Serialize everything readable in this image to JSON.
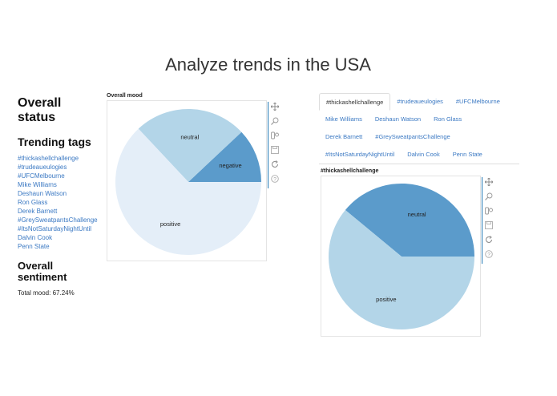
{
  "page": {
    "title": "Analyze trends in the USA"
  },
  "left": {
    "status_heading_1": "Overall",
    "status_heading_2": "status",
    "trending_heading": "Trending tags",
    "tags": [
      "#thickashellchallenge",
      "#trudeaueulogies",
      "#UFCMelbourne",
      "Mike Williams",
      "Deshaun Watson",
      "Ron Glass",
      "Derek Barnett",
      "#GreySweatpantsChallenge",
      "#ItsNotSaturdayNightUntil",
      "Dalvin Cook",
      "Penn State"
    ],
    "sentiment_heading_1": "Overall",
    "sentiment_heading_2": "sentiment",
    "total_mood": "Total mood: 67.24%"
  },
  "tabs": {
    "rows": [
      [
        "#thickashellchallenge",
        "#trudeaueulogies",
        "#UFCMelbourne"
      ],
      [
        "Mike Williams",
        "Deshaun Watson",
        "Ron Glass"
      ],
      [
        "Derek Barnett",
        "#GreySweatpantsChallenge"
      ],
      [
        "#ItsNotSaturdayNightUntil",
        "Dalvin Cook",
        "Penn State"
      ]
    ],
    "active": "#thickashellchallenge"
  },
  "toolbar_icons": [
    "pan-icon",
    "box-zoom-icon",
    "wheel-zoom-icon",
    "save-icon",
    "reset-icon",
    "help-icon"
  ],
  "chart_data": [
    {
      "type": "pie",
      "title": "Overall mood",
      "labels": [
        "negative",
        "neutral",
        "positive"
      ],
      "values": [
        0.12,
        0.25,
        0.63
      ],
      "colors": [
        "#5b9bcb",
        "#b3d5e8",
        "#e4eef8"
      ]
    },
    {
      "type": "pie",
      "title": "#thickashellchallenge",
      "labels": [
        "neutral",
        "positive"
      ],
      "values": [
        0.39,
        0.61
      ],
      "colors": [
        "#5b9bcb",
        "#b3d5e8"
      ]
    }
  ]
}
